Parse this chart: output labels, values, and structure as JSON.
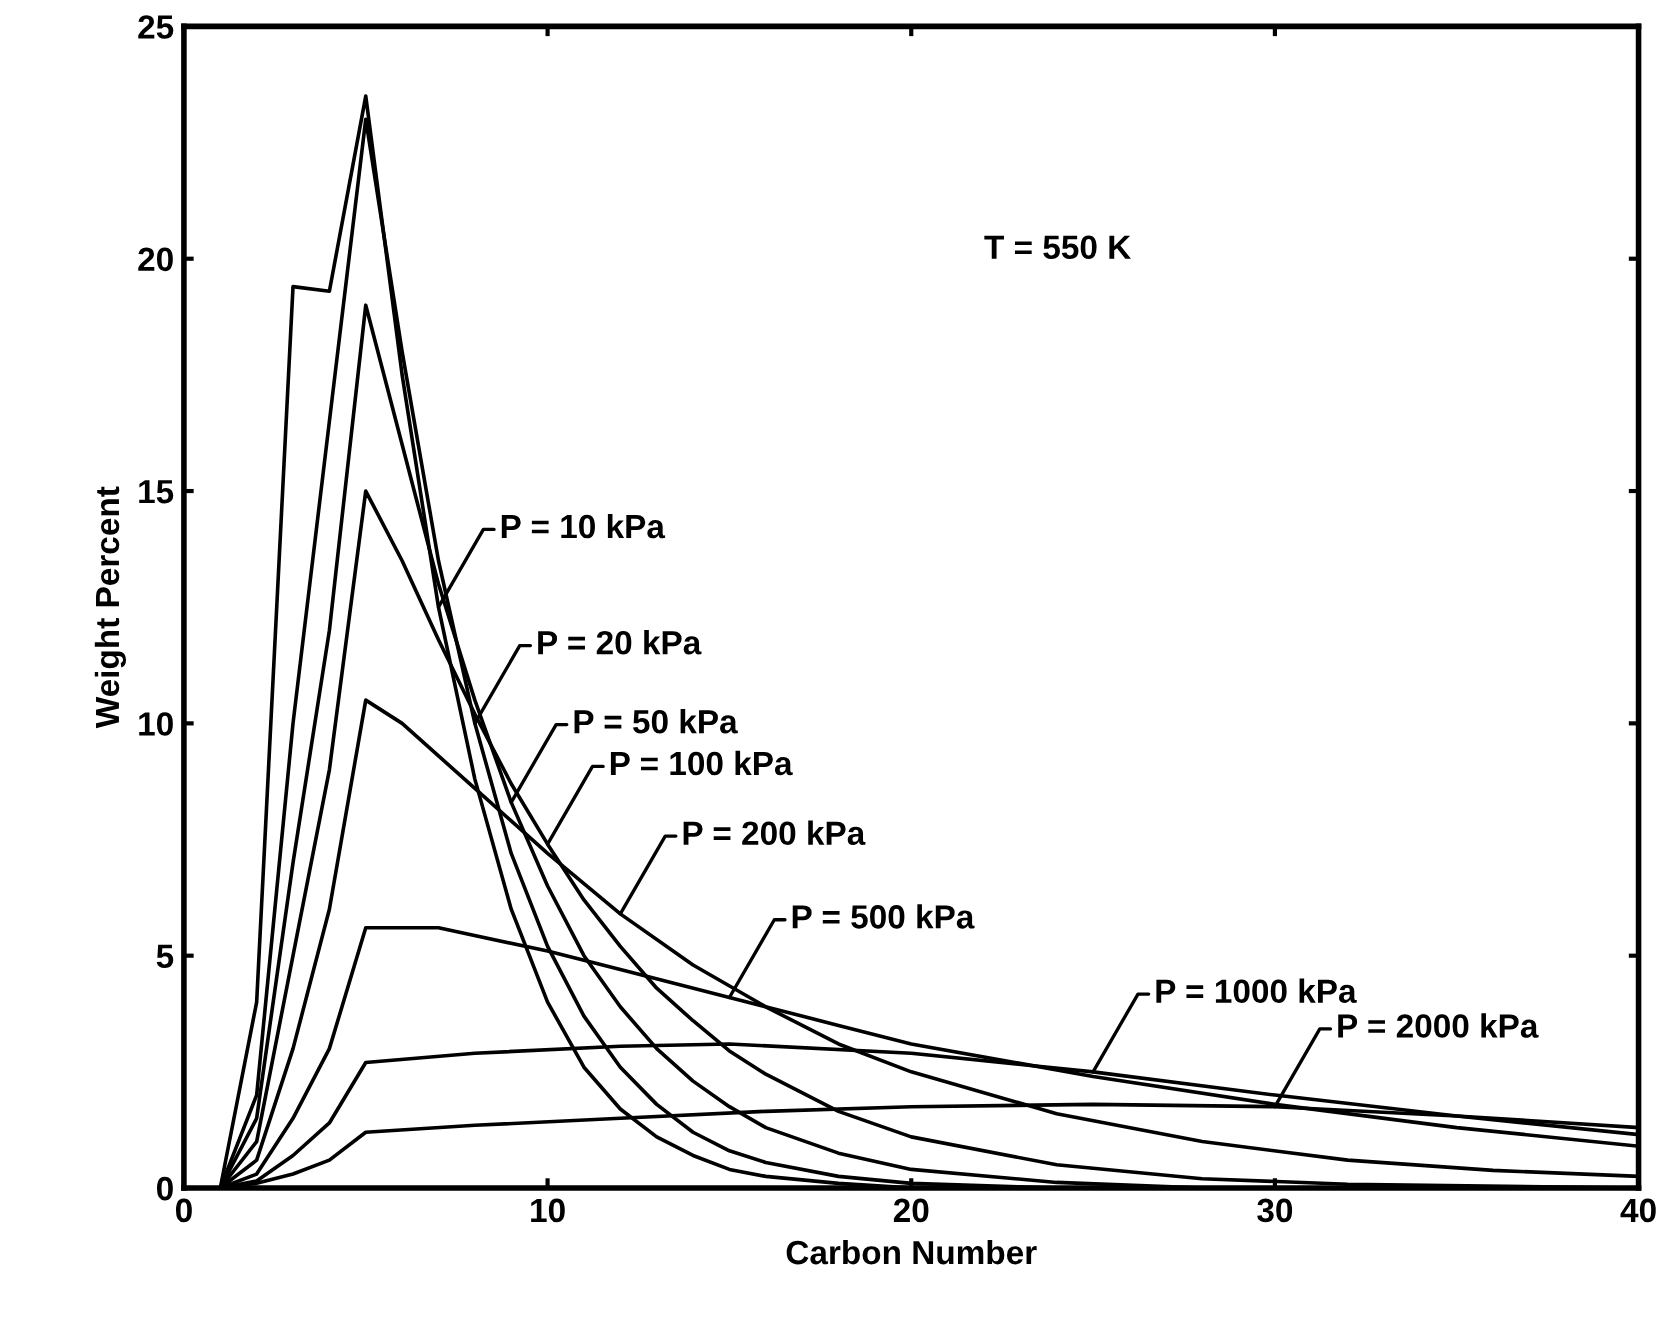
{
  "chart_data": {
    "type": "line",
    "xlabel": "Carbon Number",
    "ylabel": "Weight Percent",
    "xlim": [
      0,
      40
    ],
    "xticks": [
      0,
      10,
      20,
      30,
      40
    ],
    "ylim": [
      0,
      25
    ],
    "yticks": [
      0,
      5,
      10,
      15,
      20,
      25
    ],
    "grid": false,
    "legend": false,
    "marker": "none",
    "line_style": "solid",
    "series": [
      {
        "color": "#000000",
        "x": [
          1,
          2,
          3,
          4,
          5,
          6,
          7,
          8,
          9,
          10,
          11,
          12,
          13,
          14,
          15,
          16,
          18,
          20
        ],
        "values": [
          0,
          4,
          19.4,
          19.3,
          23.5,
          17.5,
          12.5,
          8.8,
          6.0,
          4.0,
          2.6,
          1.7,
          1.1,
          0.7,
          0.4,
          0.25,
          0.1,
          0
        ]
      },
      {
        "color": "#000000",
        "x": [
          1,
          2,
          3,
          4,
          5,
          6,
          7,
          8,
          9,
          10,
          11,
          12,
          13,
          14,
          15,
          16,
          18,
          20,
          24
        ],
        "values": [
          0,
          2,
          10,
          16.5,
          23.0,
          18,
          13.5,
          10,
          7.2,
          5.2,
          3.7,
          2.6,
          1.8,
          1.2,
          0.8,
          0.55,
          0.25,
          0.1,
          0
        ]
      },
      {
        "color": "#000000",
        "x": [
          1,
          2,
          3,
          4,
          5,
          6,
          7,
          8,
          9,
          10,
          11,
          12,
          13,
          14,
          15,
          16,
          18,
          20,
          24,
          28
        ],
        "values": [
          0,
          1.5,
          7,
          12,
          19.0,
          16,
          13,
          10.5,
          8.3,
          6.5,
          5.0,
          3.9,
          3.0,
          2.3,
          1.75,
          1.3,
          0.75,
          0.4,
          0.12,
          0
        ]
      },
      {
        "color": "#000000",
        "x": [
          1,
          2,
          3,
          4,
          5,
          6,
          7,
          8,
          9,
          10,
          11,
          12,
          13,
          14,
          15,
          16,
          18,
          20,
          24,
          28,
          32,
          40
        ],
        "values": [
          0,
          1,
          5,
          9,
          15.0,
          13.5,
          11.8,
          10.2,
          8.7,
          7.4,
          6.2,
          5.2,
          4.3,
          3.6,
          2.95,
          2.45,
          1.65,
          1.1,
          0.5,
          0.2,
          0.08,
          0
        ]
      },
      {
        "color": "#000000",
        "x": [
          1,
          2,
          3,
          4,
          5,
          6,
          7,
          8,
          9,
          10,
          12,
          14,
          16,
          18,
          20,
          24,
          28,
          32,
          36,
          40
        ],
        "values": [
          0,
          0.6,
          3,
          6,
          10.5,
          10,
          9.3,
          8.6,
          7.9,
          7.2,
          5.9,
          4.8,
          3.9,
          3.1,
          2.5,
          1.6,
          1.0,
          0.6,
          0.38,
          0.25
        ]
      },
      {
        "color": "#000000",
        "x": [
          1,
          2,
          3,
          4,
          5,
          7,
          10,
          12,
          15,
          18,
          20,
          25,
          30,
          35,
          40
        ],
        "values": [
          0,
          0.3,
          1.5,
          3,
          5.6,
          5.6,
          5.1,
          4.7,
          4.1,
          3.5,
          3.1,
          2.4,
          1.8,
          1.3,
          0.9
        ]
      },
      {
        "color": "#000000",
        "x": [
          1,
          2,
          3,
          4,
          5,
          8,
          12,
          15,
          20,
          25,
          30,
          35,
          40
        ],
        "values": [
          0,
          0.15,
          0.7,
          1.4,
          2.7,
          2.9,
          3.05,
          3.1,
          2.9,
          2.5,
          2.0,
          1.55,
          1.15
        ]
      },
      {
        "color": "#000000",
        "x": [
          1,
          2,
          3,
          4,
          5,
          8,
          12,
          16,
          20,
          25,
          30,
          35,
          40
        ],
        "values": [
          0,
          0.1,
          0.3,
          0.6,
          1.2,
          1.35,
          1.5,
          1.65,
          1.75,
          1.8,
          1.75,
          1.55,
          1.3
        ]
      }
    ],
    "annotations": [
      "T = 550 K",
      {
        "text": "P = 10 kPa",
        "x": 7,
        "y": 12.5
      },
      {
        "text": "P = 20 kPa",
        "x": 8,
        "y": 10
      },
      {
        "text": "P = 50 kPa",
        "x": 9,
        "y": 8.3
      },
      {
        "text": "P = 100 kPa",
        "x": 10,
        "y": 7.4
      },
      {
        "text": "P = 200 kPa",
        "x": 12,
        "y": 5.9
      },
      {
        "text": "P = 500 kPa",
        "x": 15,
        "y": 4.1
      },
      {
        "text": "P = 1000 kPa",
        "x": 25,
        "y": 2.5
      },
      {
        "text": "P = 2000 kPa",
        "x": 30,
        "y": 1.75
      }
    ]
  }
}
